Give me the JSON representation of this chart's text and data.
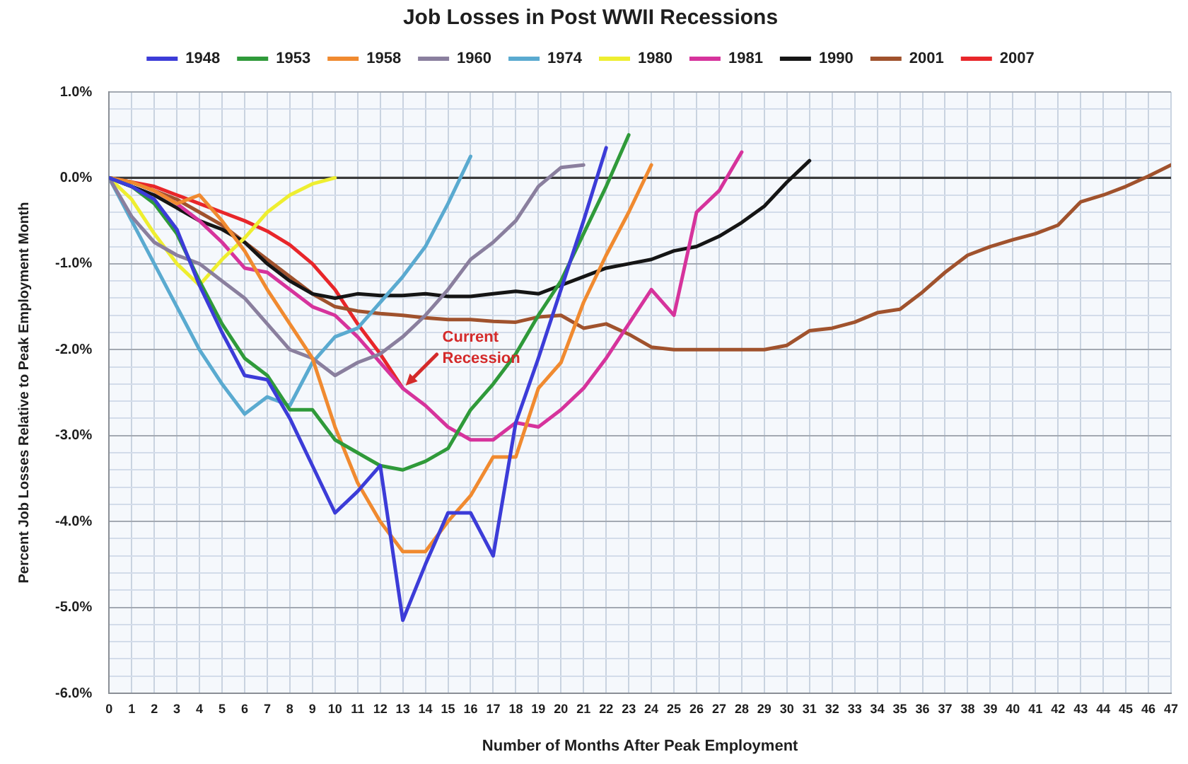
{
  "chart_data": {
    "type": "line",
    "title": "Job Losses in Post WWII Recessions",
    "xlabel": "Number of Months After Peak Employment",
    "ylabel": "Percent Job Losses Relative to Peak Employment Month",
    "series": [
      {
        "name": "1948",
        "color": "#3c3cd8",
        "x": [
          0,
          1,
          2,
          3,
          4,
          5,
          6,
          7,
          8,
          9,
          10,
          11,
          12,
          13,
          14,
          15,
          16,
          17,
          18,
          19,
          20,
          21,
          22
        ],
        "values": [
          0,
          -0.1,
          -0.25,
          -0.6,
          -1.25,
          -1.8,
          -2.3,
          -2.35,
          -2.8,
          -3.35,
          -3.9,
          -3.65,
          -3.35,
          -5.15,
          -4.5,
          -3.9,
          -3.9,
          -4.4,
          -2.85,
          -2.1,
          -1.3,
          -0.5,
          0.35
        ]
      },
      {
        "name": "1953",
        "color": "#2f9a3a",
        "x": [
          0,
          1,
          2,
          3,
          4,
          5,
          6,
          7,
          8,
          9,
          10,
          11,
          12,
          13,
          14,
          15,
          16,
          17,
          18,
          19,
          20,
          21,
          22,
          23
        ],
        "values": [
          0,
          -0.1,
          -0.3,
          -0.65,
          -1.2,
          -1.7,
          -2.1,
          -2.3,
          -2.7,
          -2.7,
          -3.05,
          -3.2,
          -3.35,
          -3.4,
          -3.3,
          -3.15,
          -2.7,
          -2.4,
          -2.05,
          -1.6,
          -1.2,
          -0.65,
          -0.1,
          0.5
        ]
      },
      {
        "name": "1958",
        "color": "#f08a30",
        "x": [
          0,
          1,
          2,
          3,
          4,
          5,
          6,
          7,
          8,
          9,
          10,
          11,
          12,
          13,
          14,
          15,
          16,
          17,
          18,
          19,
          20,
          21,
          22,
          23,
          24
        ],
        "values": [
          0,
          -0.05,
          -0.15,
          -0.3,
          -0.2,
          -0.5,
          -0.85,
          -1.3,
          -1.7,
          -2.1,
          -2.9,
          -3.55,
          -4.0,
          -4.35,
          -4.35,
          -4.0,
          -3.7,
          -3.25,
          -3.25,
          -2.45,
          -2.15,
          -1.45,
          -0.9,
          -0.4,
          0.15
        ]
      },
      {
        "name": "1960",
        "color": "#8a7f9e",
        "x": [
          0,
          1,
          2,
          3,
          4,
          5,
          6,
          7,
          8,
          9,
          10,
          11,
          12,
          13,
          14,
          15,
          16,
          17,
          18,
          19,
          20,
          21
        ],
        "values": [
          0,
          -0.45,
          -0.75,
          -0.9,
          -1.0,
          -1.2,
          -1.4,
          -1.7,
          -2.0,
          -2.1,
          -2.3,
          -2.15,
          -2.05,
          -1.85,
          -1.6,
          -1.3,
          -0.95,
          -0.75,
          -0.5,
          -0.1,
          0.12,
          0.15
        ]
      },
      {
        "name": "1974",
        "color": "#5aaad0",
        "x": [
          0,
          1,
          2,
          3,
          4,
          5,
          6,
          7,
          8,
          9,
          10,
          11,
          12,
          13,
          14,
          15,
          16
        ],
        "values": [
          0,
          -0.5,
          -1.0,
          -1.5,
          -2.0,
          -2.4,
          -2.75,
          -2.55,
          -2.65,
          -2.15,
          -1.85,
          -1.75,
          -1.45,
          -1.15,
          -0.8,
          -0.3,
          0.25
        ]
      },
      {
        "name": "1980",
        "color": "#eeee30",
        "x": [
          0,
          1,
          2,
          3,
          4,
          5,
          6,
          7,
          8,
          9,
          10
        ],
        "values": [
          0,
          -0.25,
          -0.65,
          -1.0,
          -1.25,
          -0.95,
          -0.7,
          -0.4,
          -0.2,
          -0.07,
          0.0
        ]
      },
      {
        "name": "1981",
        "color": "#d6339c",
        "x": [
          2,
          3,
          4,
          5,
          6,
          7,
          8,
          9,
          10,
          11,
          12,
          13,
          14,
          15,
          16,
          17,
          18,
          19,
          20,
          21,
          22,
          23,
          24,
          25,
          26,
          27,
          28
        ],
        "values": [
          -0.15,
          -0.3,
          -0.5,
          -0.75,
          -1.05,
          -1.1,
          -1.3,
          -1.5,
          -1.6,
          -1.85,
          -2.15,
          -2.45,
          -2.65,
          -2.9,
          -3.05,
          -3.05,
          -2.85,
          -2.9,
          -2.7,
          -2.45,
          -2.1,
          -1.7,
          -1.3,
          -1.6,
          -0.4,
          -0.15,
          0.3
        ]
      },
      {
        "name": "1990",
        "color": "#151515",
        "x": [
          0,
          1,
          2,
          3,
          4,
          5,
          6,
          7,
          8,
          9,
          10,
          11,
          12,
          13,
          14,
          15,
          16,
          17,
          18,
          19,
          20,
          21,
          22,
          23,
          24,
          25,
          26,
          27,
          28,
          29,
          30,
          31
        ],
        "values": [
          0,
          -0.1,
          -0.2,
          -0.35,
          -0.5,
          -0.6,
          -0.75,
          -1.0,
          -1.2,
          -1.35,
          -1.4,
          -1.35,
          -1.37,
          -1.37,
          -1.35,
          -1.38,
          -1.38,
          -1.35,
          -1.32,
          -1.35,
          -1.25,
          -1.15,
          -1.05,
          -1.0,
          -0.95,
          -0.85,
          -0.8,
          -0.68,
          -0.52,
          -0.33,
          -0.05,
          0.2
        ]
      },
      {
        "name": "2001",
        "color": "#a0522d",
        "x": [
          0,
          1,
          2,
          3,
          4,
          5,
          6,
          7,
          8,
          9,
          10,
          11,
          12,
          13,
          14,
          15,
          16,
          17,
          18,
          19,
          20,
          21,
          22,
          23,
          24,
          25,
          26,
          27,
          28,
          29,
          30,
          31,
          32,
          33,
          34,
          35,
          36,
          37,
          38,
          39,
          40,
          41,
          42,
          43,
          44,
          45,
          46,
          47
        ],
        "values": [
          0,
          -0.05,
          -0.15,
          -0.25,
          -0.4,
          -0.55,
          -0.75,
          -0.95,
          -1.15,
          -1.35,
          -1.5,
          -1.55,
          -1.58,
          -1.6,
          -1.63,
          -1.65,
          -1.65,
          -1.67,
          -1.68,
          -1.62,
          -1.6,
          -1.75,
          -1.7,
          -1.82,
          -1.97,
          -2.0,
          -2.0,
          -2.0,
          -2.0,
          -2.0,
          -1.95,
          -1.78,
          -1.75,
          -1.68,
          -1.57,
          -1.53,
          -1.33,
          -1.1,
          -0.9,
          -0.8,
          -0.72,
          -0.65,
          -0.55,
          -0.28,
          -0.2,
          -0.1,
          0.02,
          0.15
        ]
      },
      {
        "name": "2007",
        "color": "#e8262a",
        "x": [
          0,
          1,
          2,
          3,
          4,
          5,
          6,
          7,
          8,
          9,
          10,
          11,
          12,
          13
        ],
        "values": [
          0,
          -0.05,
          -0.1,
          -0.2,
          -0.3,
          -0.4,
          -0.5,
          -0.62,
          -0.78,
          -1.0,
          -1.3,
          -1.7,
          -2.05,
          -2.45
        ]
      }
    ],
    "xlim": [
      0,
      47
    ],
    "xticks": [
      0,
      1,
      2,
      3,
      4,
      5,
      6,
      7,
      8,
      9,
      10,
      11,
      12,
      13,
      14,
      15,
      16,
      17,
      18,
      19,
      20,
      21,
      22,
      23,
      24,
      25,
      26,
      27,
      28,
      29,
      30,
      31,
      32,
      33,
      34,
      35,
      36,
      37,
      38,
      39,
      40,
      41,
      42,
      43,
      44,
      45,
      46,
      47
    ],
    "ylim": [
      -6,
      1
    ],
    "yticks": [
      {
        "value": -6,
        "label": "-6.0%"
      },
      {
        "value": -5.8,
        "label": null
      },
      {
        "value": -5.6,
        "label": null
      },
      {
        "value": -5.4,
        "label": null
      },
      {
        "value": -5.2,
        "label": null
      },
      {
        "value": -5,
        "label": "-5.0%"
      },
      {
        "value": -4.8,
        "label": null
      },
      {
        "value": -4.6,
        "label": null
      },
      {
        "value": -4.4,
        "label": null
      },
      {
        "value": -4.2,
        "label": null
      },
      {
        "value": -4,
        "label": "-4.0%"
      },
      {
        "value": -3.8,
        "label": null
      },
      {
        "value": -3.6,
        "label": null
      },
      {
        "value": -3.4,
        "label": null
      },
      {
        "value": -3.2,
        "label": null
      },
      {
        "value": -3,
        "label": "-3.0%"
      },
      {
        "value": -2.8,
        "label": null
      },
      {
        "value": -2.6,
        "label": null
      },
      {
        "value": -2.4,
        "label": null
      },
      {
        "value": -2.2,
        "label": null
      },
      {
        "value": -2,
        "label": "-2.0%"
      },
      {
        "value": -1.8,
        "label": null
      },
      {
        "value": -1.6,
        "label": null
      },
      {
        "value": -1.4,
        "label": null
      },
      {
        "value": -1.2,
        "label": null
      },
      {
        "value": -1,
        "label": "-1.0%"
      },
      {
        "value": -0.8,
        "label": null
      },
      {
        "value": -0.6,
        "label": null
      },
      {
        "value": -0.4,
        "label": null
      },
      {
        "value": -0.2,
        "label": null
      },
      {
        "value": 0,
        "label": "0.0%"
      },
      {
        "value": 0.2,
        "label": null
      },
      {
        "value": 0.4,
        "label": null
      },
      {
        "value": 0.6,
        "label": null
      },
      {
        "value": 0.8,
        "label": null
      },
      {
        "value": 1,
        "label": "1.0%"
      }
    ],
    "ref_lines": [
      {
        "axis": "y",
        "value": 0,
        "color": "#3a3a3a"
      }
    ],
    "annotations": [
      {
        "text": "Current Recession",
        "x": 13,
        "y": -2.45
      }
    ],
    "grid": true,
    "legend": "top",
    "marker": "none"
  }
}
